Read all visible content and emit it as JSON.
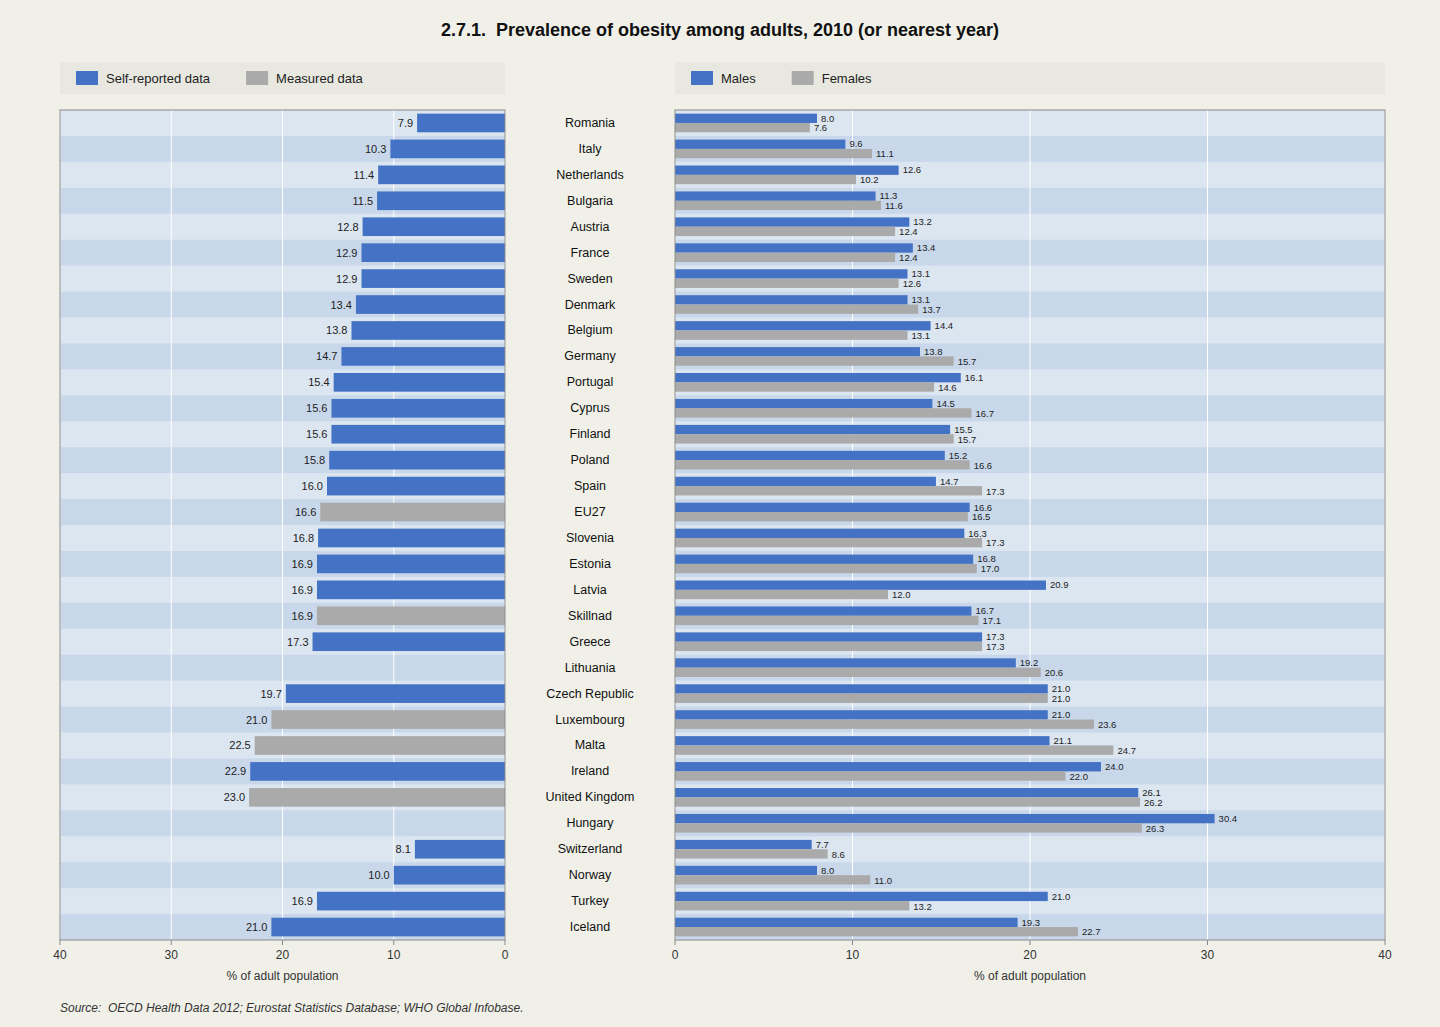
{
  "chart_data": [
    {
      "type": "bar",
      "title": "2.7.1.  Prevalence of obesity among adults, 2010 (or nearest year)",
      "annotations": [
        "Source:  OECD Health Data 2012; Eurostat Statistics Database; WHO Global Infobase."
      ],
      "orientation": "horizontal",
      "stacked": true,
      "categories": [
        "Romania",
        "Italy",
        "Netherlands",
        "Bulgaria",
        "Austria",
        "France",
        "Sweden",
        "Denmark",
        "Belgium",
        "Germany",
        "Portugal",
        "Cyprus",
        "Finland",
        "Poland",
        "Spain",
        "EU27",
        "Slovenia",
        "Estonia",
        "Latvia",
        "Skillnad",
        "Greece",
        "Lithuania",
        "Czech Republic",
        "Luxembourg",
        "Malta",
        "Ireland",
        "United Kingdom",
        "Hungary",
        "Switzerland",
        "Norway",
        "Turkey",
        "Iceland"
      ],
      "series": [
        {
          "name": "Self-reported data",
          "color": "#4472C4",
          "values": [
            7.9,
            10.3,
            11.4,
            11.5,
            12.8,
            12.9,
            12.9,
            13.4,
            13.8,
            14.7,
            15.4,
            15.6,
            15.6,
            15.8,
            16.0,
            null,
            16.8,
            16.9,
            16.9,
            null,
            17.3,
            null,
            19.7,
            null,
            null,
            22.9,
            null,
            null,
            8.1,
            10.0,
            16.9,
            21.0
          ],
          "value_labels": [
            "7.9",
            "10.3",
            "11.4",
            "11.5",
            "12.8",
            "12.9",
            "12.9",
            "13.4",
            "13.8",
            "14.7",
            "15.4",
            "15.6",
            "15.6",
            "15.8",
            "16.0",
            null,
            "16.8",
            "16.9",
            "16.9",
            null,
            "17.3",
            null,
            "19.7",
            null,
            null,
            "22.9",
            null,
            null,
            "8.1",
            "10.0",
            "16.9",
            "21.0"
          ]
        },
        {
          "name": "Measured data",
          "color": "#AAAAAA",
          "values": [
            null,
            null,
            null,
            null,
            null,
            null,
            null,
            null,
            null,
            null,
            null,
            null,
            null,
            null,
            null,
            16.6,
            null,
            null,
            null,
            16.9,
            null,
            null,
            null,
            21.0,
            22.5,
            null,
            23.0,
            null,
            null,
            null,
            null,
            null
          ],
          "value_labels": [
            null,
            null,
            null,
            null,
            null,
            null,
            null,
            null,
            null,
            null,
            null,
            null,
            null,
            null,
            null,
            "16.6",
            null,
            null,
            null,
            "16.9",
            null,
            null,
            null,
            "21.0",
            "22.5",
            null,
            "23.0",
            null,
            null,
            null,
            null,
            null
          ]
        }
      ],
      "xlabel": "% of adult population",
      "xlim": [
        40,
        0
      ],
      "xticks": [
        0,
        10,
        20,
        30,
        40
      ],
      "grid": true,
      "legend": "top",
      "data_labels": true
    },
    {
      "type": "bar",
      "orientation": "horizontal",
      "categories": [
        "Romania",
        "Italy",
        "Netherlands",
        "Bulgaria",
        "Austria",
        "France",
        "Sweden",
        "Denmark",
        "Belgium",
        "Germany",
        "Portugal",
        "Cyprus",
        "Finland",
        "Poland",
        "Spain",
        "EU27",
        "Slovenia",
        "Estonia",
        "Latvia",
        "Skillnad",
        "Greece",
        "Lithuania",
        "Czech Republic",
        "Luxembourg",
        "Malta",
        "Ireland",
        "United Kingdom",
        "Hungary",
        "Switzerland",
        "Norway",
        "Turkey",
        "Iceland"
      ],
      "series": [
        {
          "name": "Males",
          "color": "#4472C4",
          "values": [
            8.0,
            9.6,
            12.6,
            11.3,
            13.2,
            13.4,
            13.1,
            13.1,
            14.4,
            13.8,
            16.1,
            14.5,
            15.5,
            15.2,
            14.7,
            16.6,
            16.3,
            16.8,
            20.9,
            16.7,
            17.3,
            19.2,
            21.0,
            21.0,
            21.1,
            24.0,
            26.1,
            30.4,
            7.7,
            8.0,
            21.0,
            19.3
          ],
          "value_labels": [
            "8.0",
            "9.6",
            "12.6",
            "11.3",
            "13.2",
            "13.4",
            "13.1",
            "13.1",
            "14.4",
            "13.8",
            "16.1",
            "14.5",
            "15.5",
            "15.2",
            "14.7",
            "16.6",
            "16.3",
            "16.8",
            "20.9",
            "16.7",
            "17.3",
            "19.2",
            "21.0",
            "21.0",
            "21.1",
            "24.0",
            "26.1",
            "30.4",
            "7.7",
            "8.0",
            "21.0",
            "19.3"
          ]
        },
        {
          "name": "Females",
          "color": "#AAAAAA",
          "values": [
            7.6,
            11.1,
            10.2,
            11.6,
            12.4,
            12.4,
            12.6,
            13.7,
            13.1,
            15.7,
            14.6,
            16.7,
            15.7,
            16.6,
            17.3,
            16.5,
            17.3,
            17.0,
            12.0,
            17.1,
            17.3,
            20.6,
            21.0,
            23.6,
            24.7,
            22.0,
            26.2,
            26.3,
            8.6,
            11.0,
            13.2,
            22.7
          ],
          "value_labels": [
            "7.6",
            "11.1",
            "10.2",
            "11.6",
            "12.4",
            "12.4",
            "12.6",
            "13.7",
            "13.1",
            "15.7",
            "14.6",
            "16.7",
            "15.7",
            "16.6",
            "17.3",
            "16.5",
            "17.3",
            "17.0",
            "12.0",
            "17.1",
            "17.3",
            "20.6",
            "21.0",
            "23.6",
            "24.7",
            "22.0",
            "26.2",
            "26.3",
            "8.6",
            "11.0",
            "13.2",
            "22.7"
          ]
        }
      ],
      "xlabel": "% of adult population",
      "xlim": [
        0,
        40
      ],
      "xticks": [
        0,
        10,
        20,
        30,
        40
      ],
      "grid": true,
      "legend": "top",
      "data_labels": true
    }
  ]
}
